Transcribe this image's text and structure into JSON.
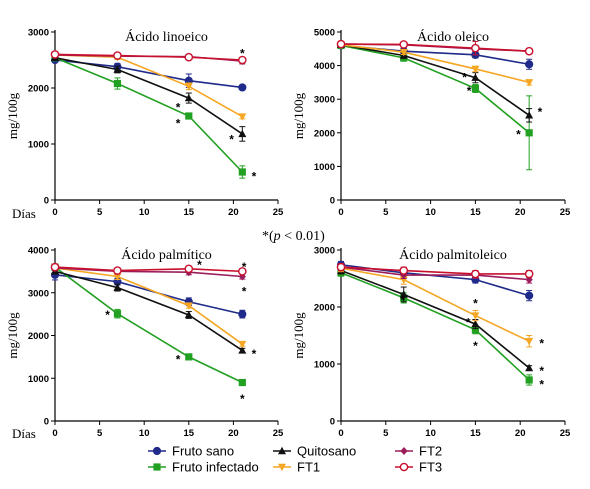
{
  "figure": {
    "significance_note": {
      "prefix": "*(",
      "p": "p",
      "rest": " < 0.01)"
    }
  },
  "legend": [
    {
      "series": "fruto_sano",
      "label": "Fruto sano",
      "color": "#1f2a8a",
      "marker": "circle-filled"
    },
    {
      "series": "fruto_infectado",
      "label": "Fruto infectado",
      "color": "#22a022",
      "marker": "square-filled"
    },
    {
      "series": "quitosano",
      "label": "Quitosano",
      "color": "#111111",
      "marker": "triangle-up-filled"
    },
    {
      "series": "ft1",
      "label": "FT1",
      "color": "#f5a623",
      "marker": "triangle-down-filled"
    },
    {
      "series": "ft2",
      "label": "FT2",
      "color": "#9b1c5a",
      "marker": "diamond-filled"
    },
    {
      "series": "ft3",
      "label": "FT3",
      "color": "#c8102e",
      "marker": "circle-open"
    }
  ],
  "chart_data": [
    {
      "type": "line",
      "title": "Ácido linoeico",
      "xlabel": "Días",
      "ylabel": "mg/100g",
      "xlim": [
        0,
        25
      ],
      "xticks": [
        0,
        5,
        10,
        15,
        20,
        25
      ],
      "ylim": [
        0,
        3000
      ],
      "yticks": [
        0,
        1000,
        2000,
        3000
      ],
      "x": [
        0,
        7,
        15,
        21
      ],
      "series": [
        {
          "name": "Fruto sano",
          "key": "fruto_sano",
          "values": [
            2500,
            2380,
            2130,
            2010
          ],
          "err": [
            40,
            60,
            120,
            30
          ]
        },
        {
          "name": "Fruto infectado",
          "key": "fruto_infectado",
          "values": [
            2540,
            2080,
            1500,
            500
          ],
          "err": [
            40,
            100,
            40,
            110
          ]
        },
        {
          "name": "Quitosano",
          "key": "quitosano",
          "values": [
            2540,
            2330,
            1820,
            1180
          ],
          "err": [
            40,
            60,
            90,
            130
          ]
        },
        {
          "name": "FT1",
          "key": "ft1",
          "values": [
            2590,
            2550,
            2030,
            1490
          ],
          "err": [
            30,
            40,
            60,
            40
          ]
        },
        {
          "name": "FT2",
          "key": "ft2",
          "values": [
            2590,
            2570,
            2560,
            2480
          ],
          "err": [
            30,
            40,
            40,
            50
          ]
        },
        {
          "name": "FT3",
          "key": "ft3",
          "values": [
            2600,
            2580,
            2550,
            2500
          ],
          "err": [
            30,
            40,
            40,
            40
          ]
        }
      ],
      "annotations": [
        {
          "text": "*",
          "x": 21,
          "y": 2620
        },
        {
          "text": "*",
          "x": 13.8,
          "y": 1650
        },
        {
          "text": "*",
          "x": 13.8,
          "y": 1370
        },
        {
          "text": "*",
          "x": 19.8,
          "y": 1080
        },
        {
          "text": "*",
          "x": 22.3,
          "y": 420
        }
      ]
    },
    {
      "type": "line",
      "title": "Ácido oleico",
      "xlabel": "",
      "ylabel": "mg/100g",
      "xlim": [
        0,
        25
      ],
      "xticks": [
        0,
        5,
        10,
        15,
        20,
        25
      ],
      "ylim": [
        0,
        5000
      ],
      "yticks": [
        0,
        1000,
        2000,
        3000,
        4000,
        5000
      ],
      "x": [
        0,
        7,
        15,
        21
      ],
      "series": [
        {
          "name": "Fruto sano",
          "key": "fruto_sano",
          "values": [
            4600,
            4430,
            4320,
            4040
          ],
          "err": [
            60,
            80,
            90,
            150
          ]
        },
        {
          "name": "Fruto infectado",
          "key": "fruto_infectado",
          "values": [
            4600,
            4230,
            3320,
            2000
          ],
          "err": [
            60,
            100,
            120,
            1100
          ]
        },
        {
          "name": "Quitosano",
          "key": "quitosano",
          "values": [
            4620,
            4300,
            3640,
            2520
          ],
          "err": [
            60,
            80,
            150,
            200
          ]
        },
        {
          "name": "FT1",
          "key": "ft1",
          "values": [
            4620,
            4400,
            3900,
            3500
          ],
          "err": [
            60,
            70,
            80,
            80
          ]
        },
        {
          "name": "FT2",
          "key": "ft2",
          "values": [
            4640,
            4620,
            4500,
            4430
          ],
          "err": [
            60,
            70,
            80,
            80
          ]
        },
        {
          "name": "FT3",
          "key": "ft3",
          "values": [
            4640,
            4630,
            4520,
            4430
          ],
          "err": [
            60,
            70,
            200,
            80
          ]
        }
      ],
      "annotations": [
        {
          "text": "*",
          "x": 13.8,
          "y": 3650
        },
        {
          "text": "*",
          "x": 14.3,
          "y": 3250
        },
        {
          "text": "*",
          "x": 22.2,
          "y": 2620
        },
        {
          "text": "*",
          "x": 19.8,
          "y": 1950
        }
      ]
    },
    {
      "type": "line",
      "title": "Ácido palmítico",
      "xlabel": "Días",
      "ylabel": "mg/100g",
      "xlim": [
        0,
        25
      ],
      "xticks": [
        0,
        5,
        10,
        15,
        20,
        25
      ],
      "ylim": [
        0,
        4000
      ],
      "yticks": [
        0,
        1000,
        2000,
        3000,
        4000
      ],
      "x": [
        0,
        7,
        15,
        21
      ],
      "series": [
        {
          "name": "Fruto sano",
          "key": "fruto_sano",
          "values": [
            3420,
            3260,
            2790,
            2500
          ],
          "err": [
            120,
            80,
            90,
            90
          ]
        },
        {
          "name": "Fruto infectado",
          "key": "fruto_infectado",
          "values": [
            3600,
            2510,
            1500,
            900
          ],
          "err": [
            60,
            100,
            50,
            40
          ]
        },
        {
          "name": "Quitosano",
          "key": "quitosano",
          "values": [
            3500,
            3120,
            2480,
            1650
          ],
          "err": [
            60,
            80,
            80,
            50
          ]
        },
        {
          "name": "FT1",
          "key": "ft1",
          "values": [
            3580,
            3380,
            2700,
            1800
          ],
          "err": [
            60,
            70,
            60,
            50
          ]
        },
        {
          "name": "FT2",
          "key": "ft2",
          "values": [
            3580,
            3500,
            3480,
            3380
          ],
          "err": [
            60,
            60,
            60,
            60
          ]
        },
        {
          "name": "FT3",
          "key": "ft3",
          "values": [
            3600,
            3520,
            3560,
            3500
          ],
          "err": [
            60,
            60,
            60,
            60
          ]
        }
      ],
      "annotations": [
        {
          "text": "*",
          "x": 16.2,
          "y": 3650
        },
        {
          "text": "*",
          "x": 21.2,
          "y": 3600
        },
        {
          "text": "*",
          "x": 21.2,
          "y": 3030
        },
        {
          "text": "*",
          "x": 5.9,
          "y": 2480
        },
        {
          "text": "*",
          "x": 13.8,
          "y": 1440
        },
        {
          "text": "*",
          "x": 22.3,
          "y": 1570
        },
        {
          "text": "*",
          "x": 21,
          "y": 520
        }
      ]
    },
    {
      "type": "line",
      "title": "Ácido palmitoleico",
      "xlabel": "",
      "ylabel": "mg/100g",
      "xlim": [
        0,
        25
      ],
      "xticks": [
        0,
        5,
        10,
        15,
        20,
        25
      ],
      "ylim": [
        0,
        3000
      ],
      "yticks": [
        0,
        1000,
        2000,
        3000
      ],
      "x": [
        0,
        7,
        15,
        21
      ],
      "series": [
        {
          "name": "Fruto sano",
          "key": "fruto_sano",
          "values": [
            2740,
            2600,
            2480,
            2200
          ],
          "err": [
            60,
            70,
            60,
            90
          ]
        },
        {
          "name": "Fruto infectado",
          "key": "fruto_infectado",
          "values": [
            2600,
            2160,
            1600,
            720
          ],
          "err": [
            60,
            90,
            70,
            90
          ]
        },
        {
          "name": "Quitosano",
          "key": "quitosano",
          "values": [
            2640,
            2220,
            1700,
            930
          ],
          "err": [
            60,
            130,
            80,
            40
          ]
        },
        {
          "name": "FT1",
          "key": "ft1",
          "values": [
            2680,
            2480,
            1850,
            1400
          ],
          "err": [
            60,
            80,
            90,
            100
          ]
        },
        {
          "name": "FT2",
          "key": "ft2",
          "values": [
            2700,
            2560,
            2560,
            2480
          ],
          "err": [
            60,
            60,
            60,
            60
          ]
        },
        {
          "name": "FT3",
          "key": "ft3",
          "values": [
            2700,
            2640,
            2580,
            2580
          ],
          "err": [
            60,
            60,
            60,
            60
          ]
        }
      ],
      "annotations": [
        {
          "text": "*",
          "x": 6.9,
          "y": 2110
        },
        {
          "text": "*",
          "x": 15,
          "y": 2060
        },
        {
          "text": "*",
          "x": 14.2,
          "y": 1730
        },
        {
          "text": "*",
          "x": 15,
          "y": 1320
        },
        {
          "text": "*",
          "x": 22.4,
          "y": 1360
        },
        {
          "text": "*",
          "x": 22.4,
          "y": 880
        },
        {
          "text": "*",
          "x": 22.4,
          "y": 640
        }
      ]
    }
  ]
}
